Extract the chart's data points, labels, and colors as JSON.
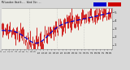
{
  "bg_color": "#d8d8d8",
  "plot_bg": "#f0f0e8",
  "grid_color": "#b0b0b0",
  "bar_color": "#cc0000",
  "trend_color": "#0000cc",
  "n_points": 120,
  "y_min": 0.5,
  "y_max": 5.5,
  "yticks": [
    1,
    2,
    3,
    4,
    5
  ],
  "trend_seed": 42,
  "noise_seed": 7,
  "n_gridlines": 3,
  "n_xticks": 30
}
